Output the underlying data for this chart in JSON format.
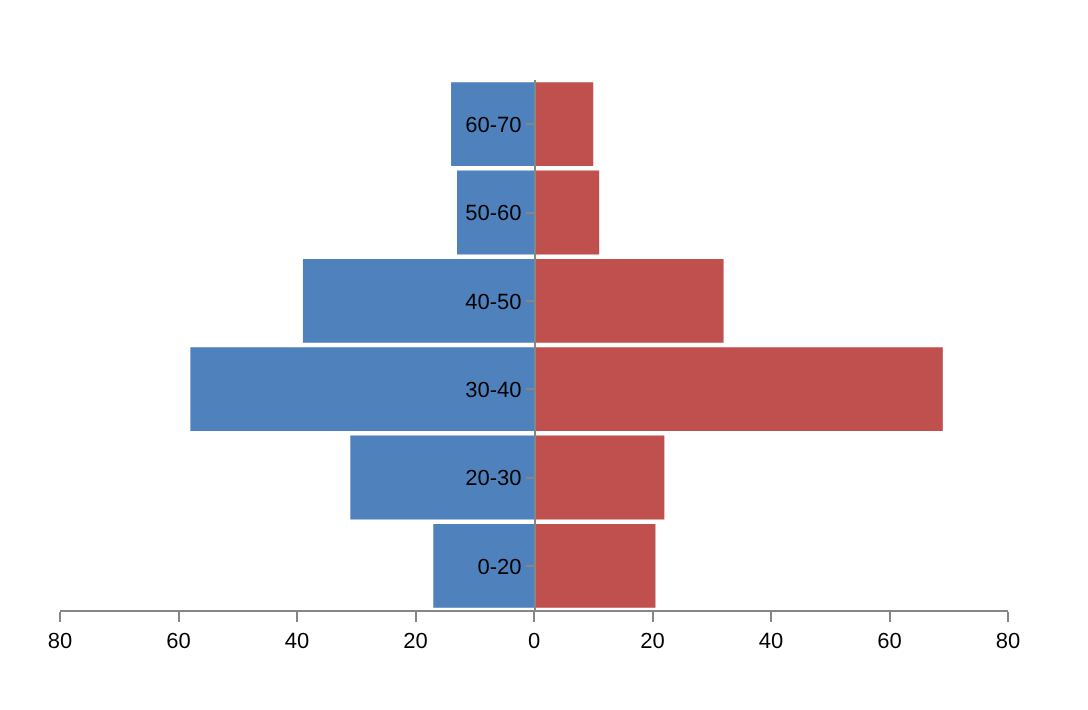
{
  "chart_data": {
    "type": "bar",
    "orientation": "horizontal",
    "stacked": true,
    "categories": [
      "60-70",
      "50-60",
      "40-50",
      "30-40",
      "20-30",
      "0-20"
    ],
    "series": [
      {
        "color": "#4f81bd",
        "values": [
          -14,
          -13,
          -39,
          -58,
          -31,
          -17
        ]
      },
      {
        "color": "#c0504d",
        "values": [
          10,
          11,
          32,
          69,
          22,
          20.5
        ]
      }
    ],
    "xlim": [
      -80,
      80
    ],
    "xticks": [
      {
        "value": -80,
        "label": "80"
      },
      {
        "value": -60,
        "label": "60"
      },
      {
        "value": -40,
        "label": "40"
      },
      {
        "value": -20,
        "label": "20"
      },
      0,
      20,
      40,
      60,
      80
    ],
    "grid": false
  }
}
